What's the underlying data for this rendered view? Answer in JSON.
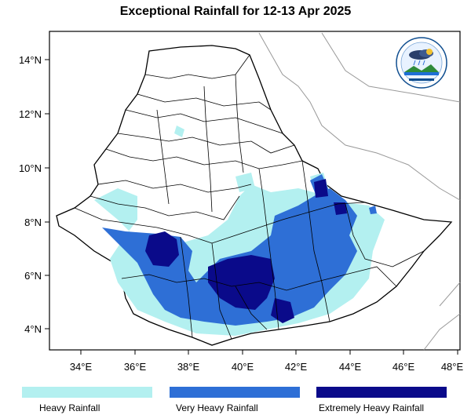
{
  "title": "Exceptional Rainfall for 12-13 Apr 2025",
  "axes": {
    "x_ticks": [
      "34°E",
      "36°E",
      "38°E",
      "40°E",
      "42°E",
      "44°E",
      "46°E",
      "48°E"
    ],
    "y_ticks": [
      "14°N",
      "12°N",
      "10°N",
      "8°N",
      "6°N",
      "4°N"
    ]
  },
  "legend": [
    {
      "label": "Heavy Rainfall",
      "color": "#b3f0f0"
    },
    {
      "label": "Very Heavy Rainfall",
      "color": "#2e6fd6"
    },
    {
      "label": "Extremely Heavy Rainfall",
      "color": "#0a0a8a"
    }
  ],
  "logo_icon": "ethiopian-meteorology-institute-logo"
}
